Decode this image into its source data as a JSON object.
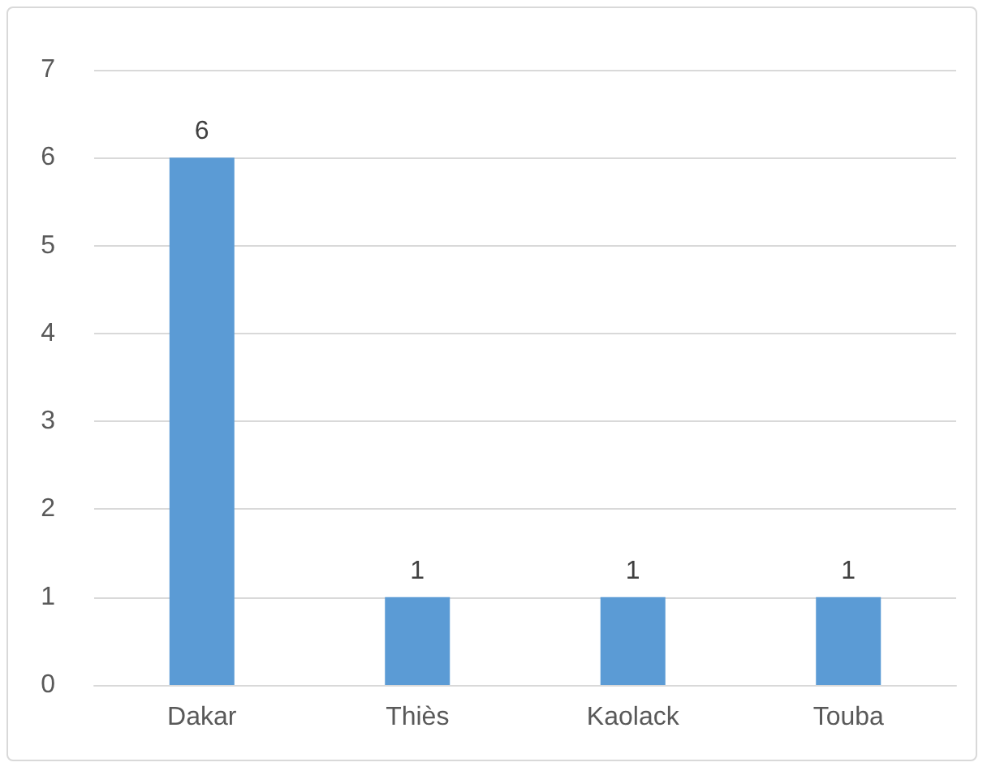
{
  "chart_data": {
    "type": "bar",
    "categories": [
      "Dakar",
      "Thiès",
      "Kaolack",
      "Touba"
    ],
    "values": [
      6,
      1,
      1,
      1
    ],
    "color": "#5b9bd5",
    "ylim": [
      0,
      7
    ],
    "yticks": [
      0,
      1,
      2,
      3,
      4,
      5,
      6,
      7
    ],
    "grid": "y",
    "data_labels": true
  }
}
